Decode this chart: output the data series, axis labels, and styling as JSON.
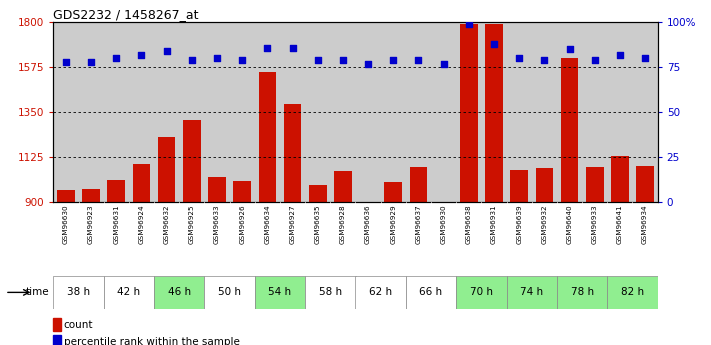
{
  "title": "GDS2232 / 1458267_at",
  "samples": [
    "GSM96630",
    "GSM96923",
    "GSM96631",
    "GSM96924",
    "GSM96632",
    "GSM96925",
    "GSM96633",
    "GSM96926",
    "GSM96634",
    "GSM96927",
    "GSM96635",
    "GSM96928",
    "GSM96636",
    "GSM96929",
    "GSM96637",
    "GSM96930",
    "GSM96638",
    "GSM96931",
    "GSM96639",
    "GSM96932",
    "GSM96640",
    "GSM96933",
    "GSM96641",
    "GSM96934"
  ],
  "counts": [
    960,
    965,
    1010,
    1090,
    1225,
    1310,
    1025,
    1005,
    1550,
    1390,
    985,
    1055,
    870,
    1000,
    1075,
    870,
    1790,
    1790,
    1060,
    1070,
    1620,
    1075,
    1130,
    1080
  ],
  "percentile_ranks": [
    78,
    78,
    80,
    82,
    84,
    79,
    80,
    79,
    86,
    86,
    79,
    79,
    77,
    79,
    79,
    77,
    99,
    88,
    80,
    79,
    85,
    79,
    82,
    80
  ],
  "time_groups": [
    {
      "label": "38 h",
      "start": 0,
      "end": 2,
      "color": "#ffffff"
    },
    {
      "label": "42 h",
      "start": 2,
      "end": 4,
      "color": "#ffffff"
    },
    {
      "label": "46 h",
      "start": 4,
      "end": 6,
      "color": "#90ee90"
    },
    {
      "label": "50 h",
      "start": 6,
      "end": 8,
      "color": "#ffffff"
    },
    {
      "label": "54 h",
      "start": 8,
      "end": 10,
      "color": "#90ee90"
    },
    {
      "label": "58 h",
      "start": 10,
      "end": 12,
      "color": "#ffffff"
    },
    {
      "label": "62 h",
      "start": 12,
      "end": 14,
      "color": "#ffffff"
    },
    {
      "label": "66 h",
      "start": 14,
      "end": 16,
      "color": "#ffffff"
    },
    {
      "label": "70 h",
      "start": 16,
      "end": 18,
      "color": "#90ee90"
    },
    {
      "label": "74 h",
      "start": 18,
      "end": 20,
      "color": "#90ee90"
    },
    {
      "label": "78 h",
      "start": 20,
      "end": 22,
      "color": "#90ee90"
    },
    {
      "label": "82 h",
      "start": 22,
      "end": 24,
      "color": "#90ee90"
    }
  ],
  "bar_color": "#cc1100",
  "dot_color": "#0000cc",
  "ylim_left": [
    900,
    1800
  ],
  "ylim_right": [
    0,
    100
  ],
  "yticks_left": [
    900,
    1125,
    1350,
    1575,
    1800
  ],
  "yticks_right": [
    0,
    25,
    50,
    75,
    100
  ],
  "background_color": "#ffffff",
  "sample_bg_color": "#cccccc",
  "legend_count_label": "count",
  "legend_pct_label": "percentile rank within the sample"
}
